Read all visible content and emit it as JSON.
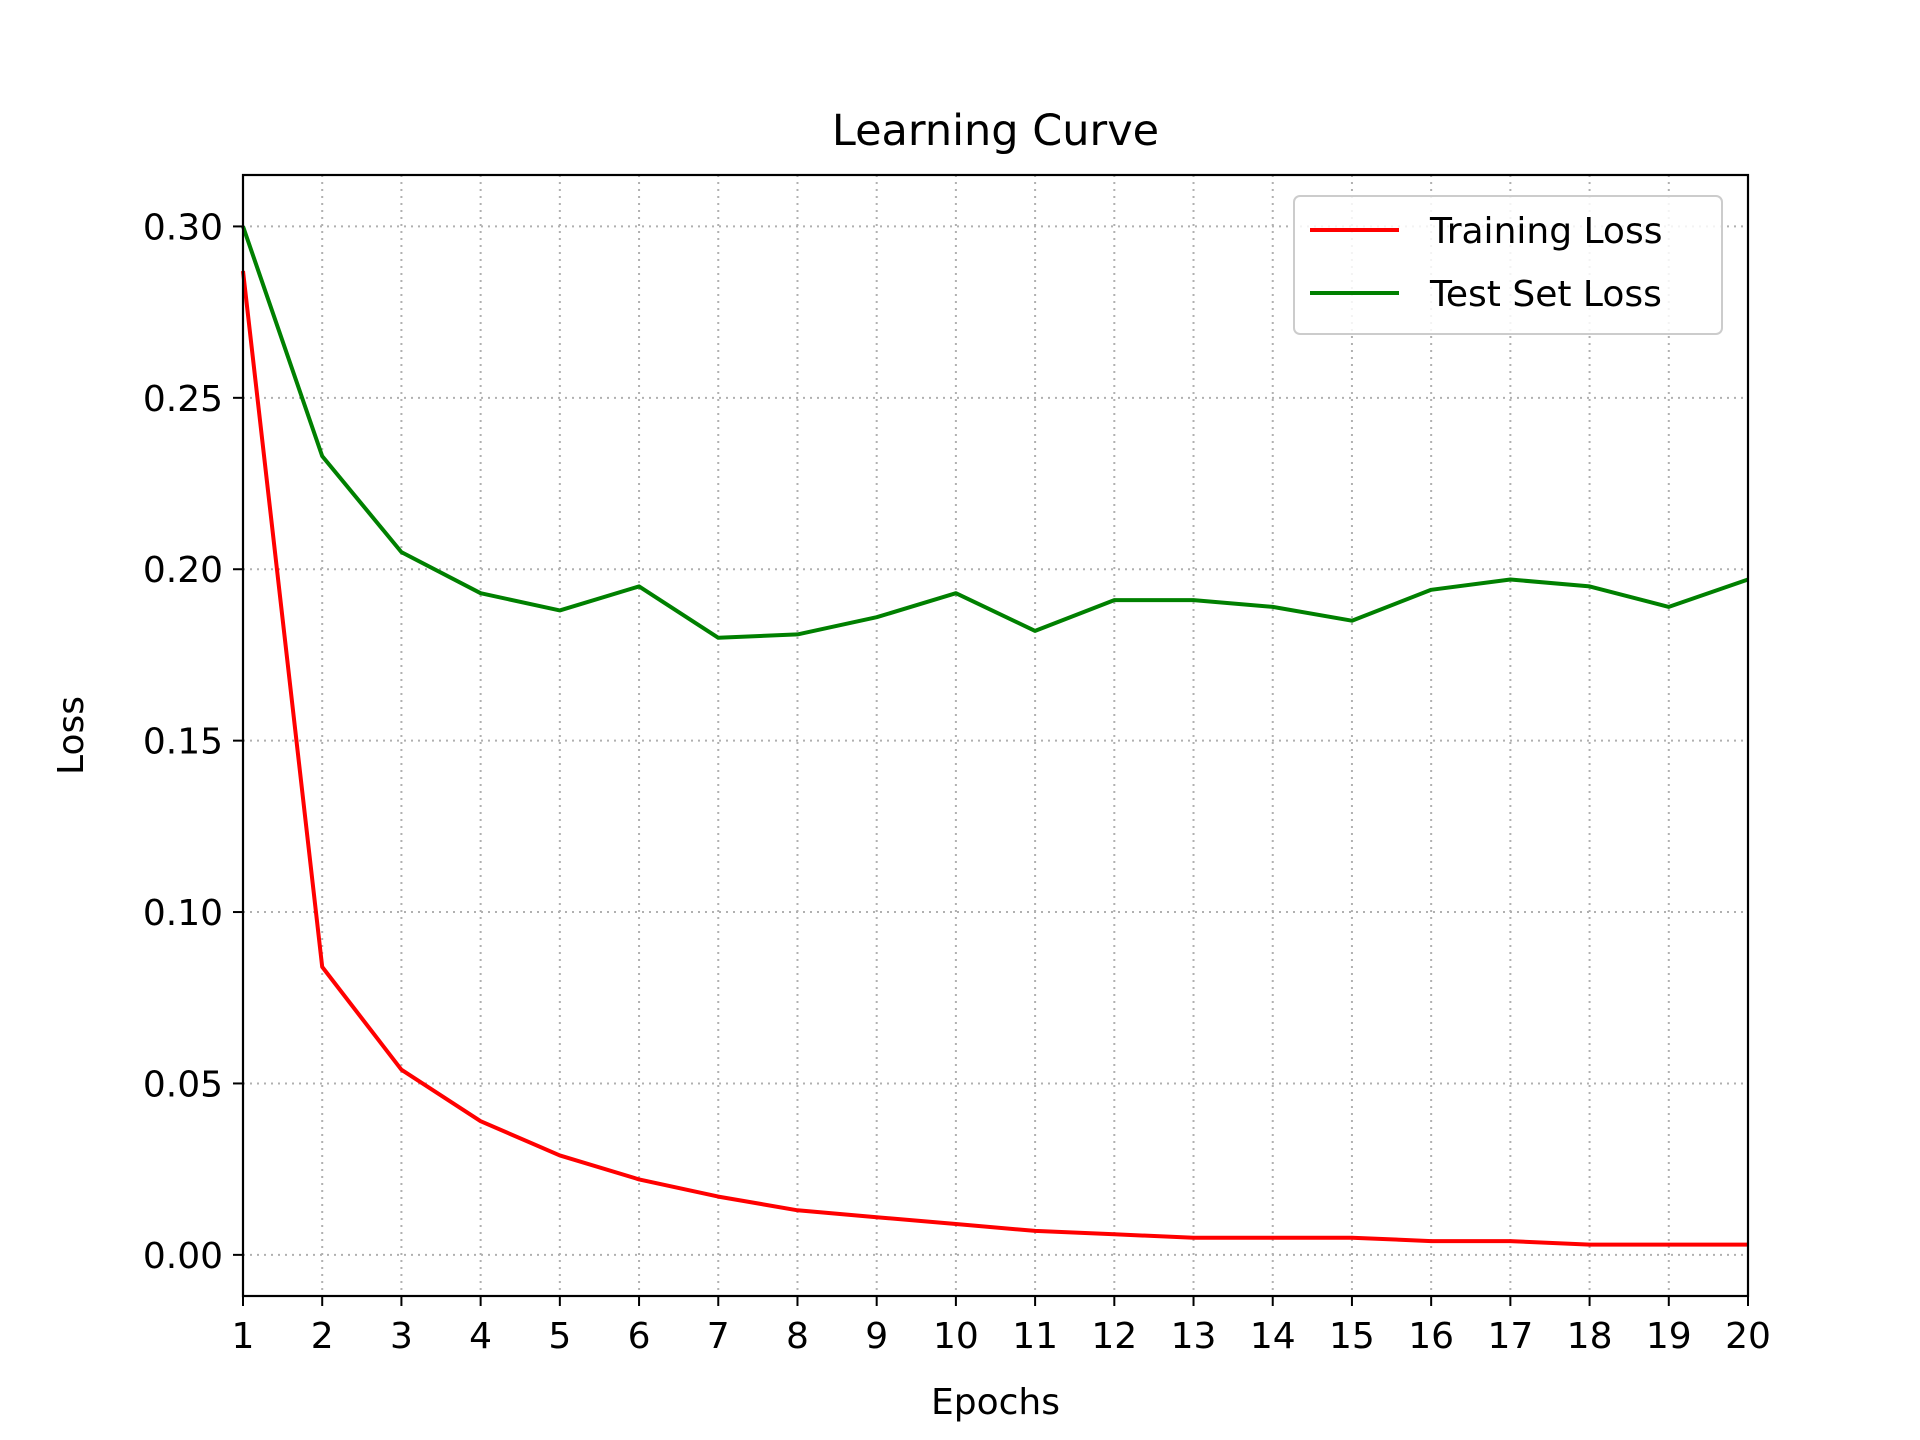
{
  "chart_data": {
    "type": "line",
    "title": "Learning Curve",
    "xlabel": "Epochs",
    "ylabel": "Loss",
    "x": [
      1,
      2,
      3,
      4,
      5,
      6,
      7,
      8,
      9,
      10,
      11,
      12,
      13,
      14,
      15,
      16,
      17,
      18,
      19,
      20
    ],
    "xticks": [
      "1",
      "2",
      "3",
      "4",
      "5",
      "6",
      "7",
      "8",
      "9",
      "10",
      "11",
      "12",
      "13",
      "14",
      "15",
      "16",
      "17",
      "18",
      "19",
      "20"
    ],
    "yticks": [
      "0.00",
      "0.05",
      "0.10",
      "0.15",
      "0.20",
      "0.25",
      "0.30"
    ],
    "xlim": [
      1,
      20
    ],
    "ylim": [
      -0.012,
      0.315
    ],
    "grid": true,
    "grid_style": "dotted",
    "legend_position": "top-right",
    "series": [
      {
        "name": "Training Loss",
        "color": "#ff0000",
        "values": [
          0.287,
          0.084,
          0.054,
          0.039,
          0.029,
          0.022,
          0.017,
          0.013,
          0.011,
          0.009,
          0.007,
          0.006,
          0.005,
          0.005,
          0.005,
          0.004,
          0.004,
          0.003,
          0.003,
          0.003
        ]
      },
      {
        "name": "Test Set Loss",
        "color": "#008000",
        "values": [
          0.3,
          0.233,
          0.205,
          0.193,
          0.188,
          0.195,
          0.18,
          0.181,
          0.186,
          0.193,
          0.182,
          0.191,
          0.191,
          0.189,
          0.185,
          0.194,
          0.197,
          0.195,
          0.189,
          0.197
        ]
      }
    ]
  }
}
